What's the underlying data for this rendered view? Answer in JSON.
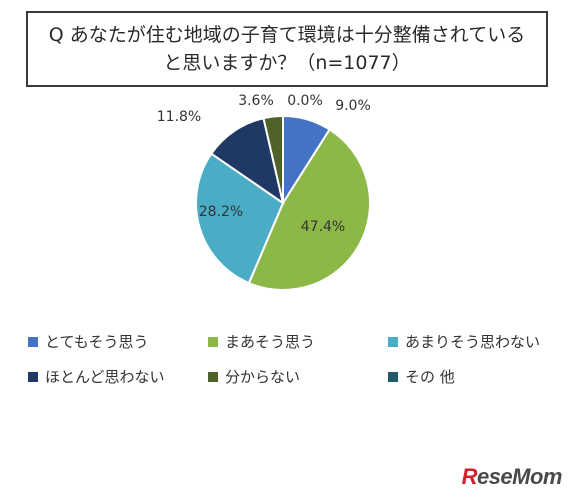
{
  "chart_data": {
    "type": "pie",
    "title": "Q あなたが住む地域の子育て環境は十分整備されていると思いますか？（n=1077）",
    "categories": [
      "とてもそう思う",
      "まあそう思う",
      "あまりそう思わない",
      "ほとんど思わない",
      "分からない",
      "その 他"
    ],
    "values": [
      9.0,
      47.4,
      28.2,
      11.8,
      3.6,
      0.0
    ],
    "labels": [
      "9.0%",
      "47.4%",
      "28.2%",
      "11.8%",
      "3.6%",
      "0.0%"
    ],
    "colors": [
      "#4472c4",
      "#8cb847",
      "#4bacc6",
      "#1f3864",
      "#4f6228",
      "#215968"
    ],
    "start": "12 o'clock, clockwise",
    "legend_position": "bottom"
  },
  "logo": {
    "text": "ReseMom"
  }
}
